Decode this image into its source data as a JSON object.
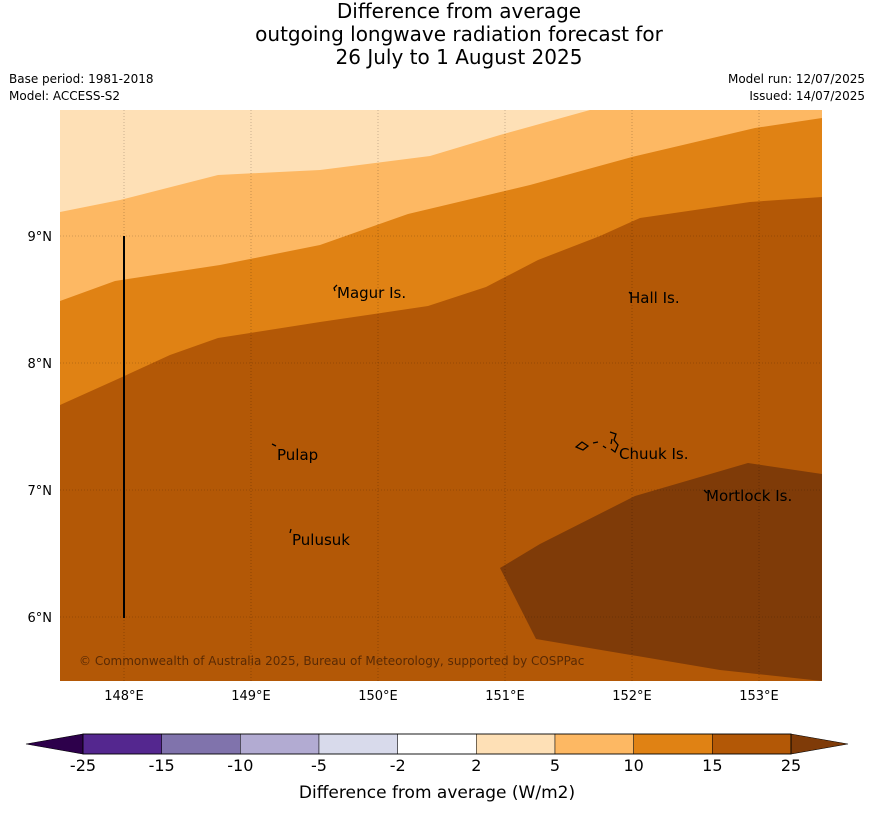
{
  "title": {
    "line1": "Difference from average",
    "line2": "outgoing longwave radiation forecast for",
    "line3": "26 July to 1 August 2025"
  },
  "meta_left": {
    "base_period": "Base period: 1981-2018",
    "model": "Model: ACCESS-S2"
  },
  "meta_right": {
    "model_run": "Model run: 12/07/2025",
    "issued": "Issued: 14/07/2025"
  },
  "map": {
    "x_ticks": [
      "148°E",
      "149°E",
      "150°E",
      "151°E",
      "152°E",
      "153°E"
    ],
    "y_ticks": [
      "9°N",
      "8°N",
      "7°N",
      "6°N"
    ],
    "places": [
      {
        "name": "Magur Is.",
        "lon": 149.68,
        "lat": 8.56
      },
      {
        "name": "Hall Is.",
        "lon": 151.98,
        "lat": 8.52
      },
      {
        "name": "Pulap",
        "lon": 149.18,
        "lat": 7.29
      },
      {
        "name": "Chuuk Is.",
        "lon": 151.85,
        "lat": 7.3
      },
      {
        "name": "Mortlock Is.",
        "lon": 152.58,
        "lat": 6.97
      },
      {
        "name": "Pulusuk",
        "lon": 149.3,
        "lat": 6.62
      }
    ],
    "copyright": "© Commonwealth of Australia 2025, Bureau of Meteorology, supported by COSPPac"
  },
  "colorbar": {
    "label": "Difference from average (W/m2)",
    "ticks": [
      "-25",
      "-15",
      "-10",
      "-5",
      "-2",
      "2",
      "5",
      "10",
      "15",
      "25"
    ],
    "colors": [
      "#54278f",
      "#8073ac",
      "#b2abd2",
      "#d8daeb",
      "#ffffff",
      "#fee0b6",
      "#fdb863",
      "#e08214",
      "#b35806"
    ],
    "extend_low_color": "#2d004b",
    "extend_high_color": "#7f3b08"
  }
}
